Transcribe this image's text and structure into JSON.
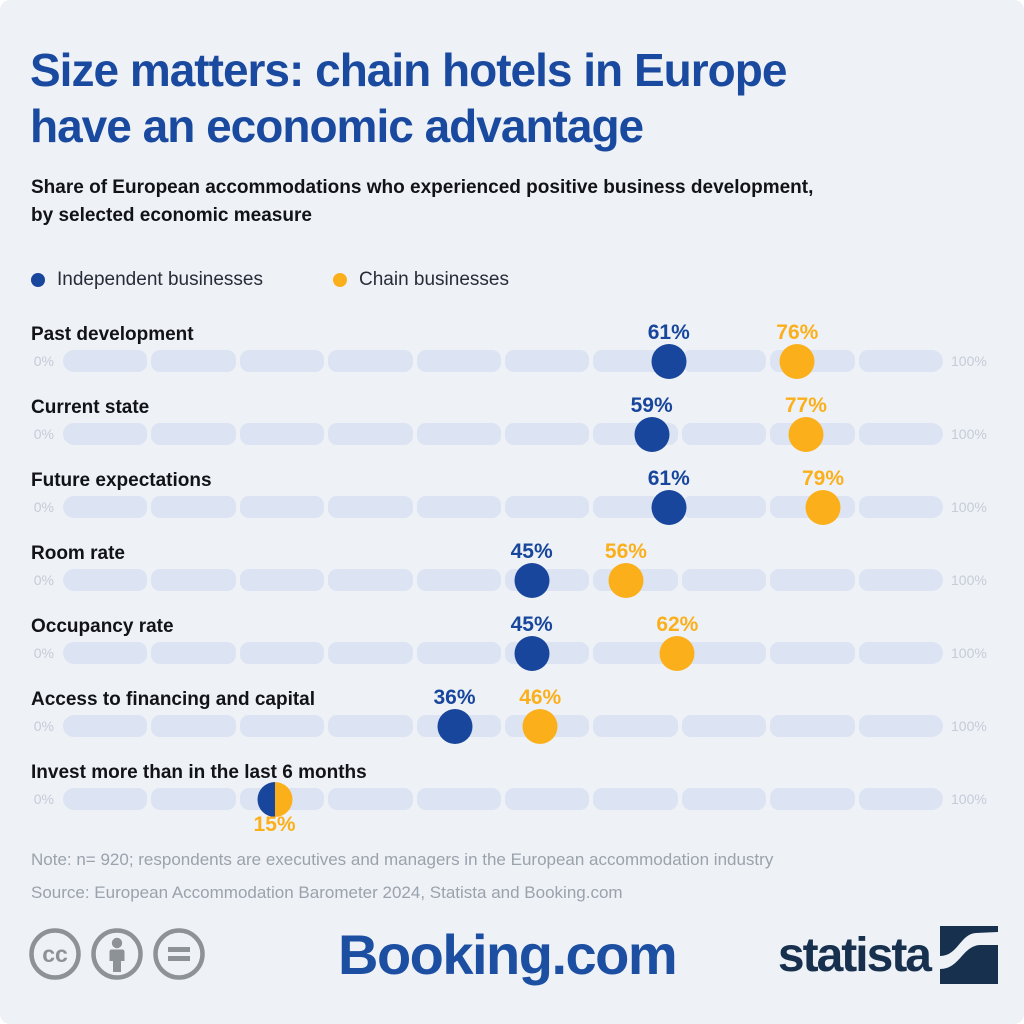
{
  "header": {
    "title_line1": "Size matters: chain hotels in Europe",
    "title_line2": "have an economic advantage",
    "subtitle_line1": "Share of European accommodations who experienced positive business development,",
    "subtitle_line2": "by selected economic measure"
  },
  "colors": {
    "independent": "#17469c",
    "chain": "#fbb01b",
    "title": "#1a4a9f",
    "background": "#eef1f6",
    "track": "#dce4f3",
    "text_dark": "#111318",
    "note": "#9aa2ac",
    "axis": "#c5ccd8",
    "booking": "#1c4fa1",
    "statista": "#16304e",
    "cc": "#8d9296"
  },
  "chart_data": {
    "type": "scatter",
    "title": "Size matters: chain hotels in Europe have an economic advantage",
    "subtitle": "Share of European accommodations who experienced positive business development, by selected economic measure",
    "xlim": [
      0,
      100
    ],
    "x_axis_labels": [
      "0%",
      "100%"
    ],
    "grid": false,
    "legend_position": "top-left",
    "series": [
      {
        "name": "Independent businesses",
        "color": "#17469c"
      },
      {
        "name": "Chain businesses",
        "color": "#fbb01b"
      }
    ],
    "rows": [
      {
        "category": "Past development",
        "independent": 61,
        "chain": 76,
        "independent_label": "61%",
        "chain_label": "76%"
      },
      {
        "category": "Current state",
        "independent": 59,
        "chain": 77,
        "independent_label": "59%",
        "chain_label": "77%"
      },
      {
        "category": "Future expectations",
        "independent": 61,
        "chain": 79,
        "independent_label": "61%",
        "chain_label": "79%"
      },
      {
        "category": "Room rate",
        "independent": 45,
        "chain": 56,
        "independent_label": "45%",
        "chain_label": "56%"
      },
      {
        "category": "Occupancy rate",
        "independent": 45,
        "chain": 62,
        "independent_label": "45%",
        "chain_label": "62%"
      },
      {
        "category": "Access to financing and capital",
        "independent": 36,
        "chain": 46,
        "independent_label": "36%",
        "chain_label": "46%"
      },
      {
        "category": "Invest more than in the last 6 months",
        "independent": 15,
        "chain": 15,
        "combined_label": "15%"
      }
    ]
  },
  "footer": {
    "note": "Note: n= 920; respondents are executives and managers in the European accommodation industry",
    "source": "Source: European Accommodation Barometer 2024, Statista and Booking.com",
    "booking_logo": "Booking.com",
    "statista_logo": "statista",
    "cc_glyph": "cc",
    "license_icons": [
      "cc",
      "attribution",
      "no-derivatives"
    ]
  }
}
